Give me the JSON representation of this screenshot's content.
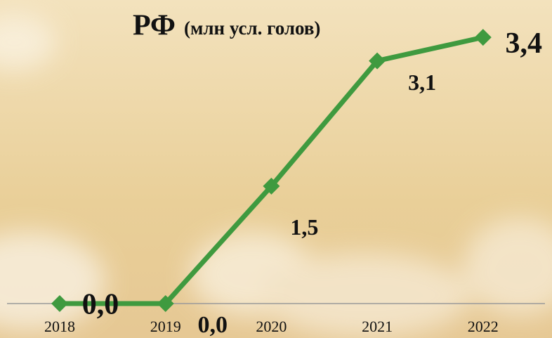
{
  "chart_data": {
    "type": "line",
    "title": "РФ",
    "subtitle": "(млн усл. голов)",
    "categories": [
      "2018",
      "2019",
      "2020",
      "2021",
      "2022"
    ],
    "series": [
      {
        "name": "РФ",
        "color": "#3f9a3f",
        "values": [
          0.0,
          0.0,
          1.5,
          3.1,
          3.4
        ],
        "value_labels": [
          "0,0",
          "0,0",
          "1,5",
          "3,1",
          "3,4"
        ]
      }
    ],
    "ylim": [
      0,
      3.5
    ]
  }
}
